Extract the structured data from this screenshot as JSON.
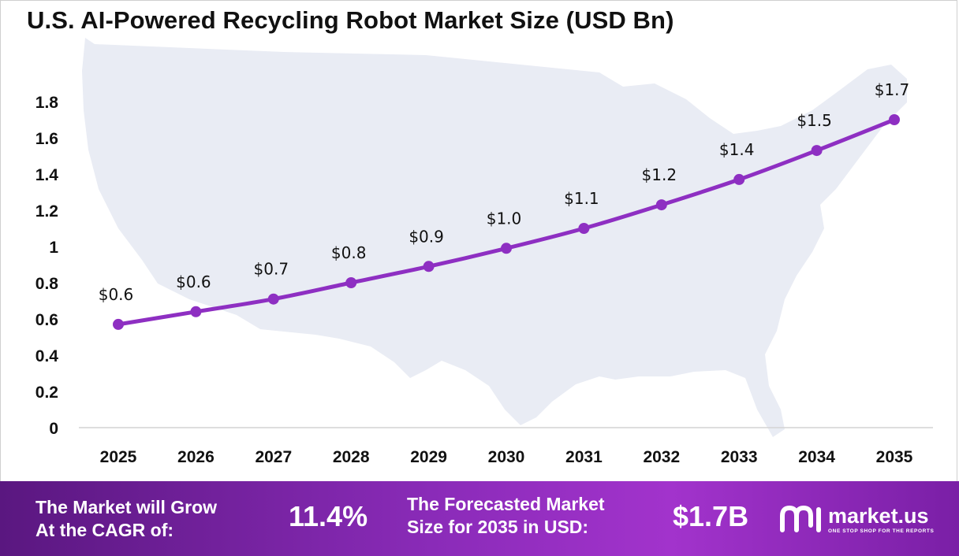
{
  "title": "U.S. AI-Powered Recycling Robot Market Size (USD Bn)",
  "colors": {
    "line": "#8e2fc2",
    "marker": "#8e2fc2",
    "map": "#e9ecf4",
    "footer_start": "#5a1780",
    "footer_end": "#a233cc"
  },
  "chart_data": {
    "type": "line",
    "title": "U.S. AI-Powered Recycling Robot Market Size (USD Bn)",
    "xlabel": "",
    "ylabel": "",
    "categories": [
      "2025",
      "2026",
      "2027",
      "2028",
      "2029",
      "2030",
      "2031",
      "2032",
      "2033",
      "2034",
      "2035"
    ],
    "values": [
      0.57,
      0.64,
      0.71,
      0.8,
      0.89,
      0.99,
      1.1,
      1.23,
      1.37,
      1.53,
      1.7
    ],
    "data_labels": [
      "$0.6",
      "$0.6",
      "$0.7",
      "$0.8",
      "$0.9",
      "$1.0",
      "$1.1",
      "$1.2",
      "$1.4",
      "$1.5",
      "$1.7"
    ],
    "y_ticks": [
      "0",
      "0.2",
      "0.4",
      "0.6",
      "0.8",
      "1",
      "1.2",
      "1.4",
      "1.6",
      "1.8"
    ],
    "y_tick_values": [
      0,
      0.2,
      0.4,
      0.6,
      0.8,
      1.0,
      1.2,
      1.4,
      1.6,
      1.8
    ],
    "ylim": [
      0,
      1.8
    ],
    "grid": false,
    "legend": "none"
  },
  "footer": {
    "cagr_label_line1": "The Market will Grow",
    "cagr_label_line2": "At the CAGR of:",
    "cagr_value": "11.4%",
    "forecast_label_line1": "The Forecasted Market",
    "forecast_label_line2": "Size for 2035 in USD:",
    "forecast_value": "$1.7B",
    "logo_text": "market.us",
    "logo_tagline": "ONE STOP SHOP FOR THE REPORTS"
  }
}
